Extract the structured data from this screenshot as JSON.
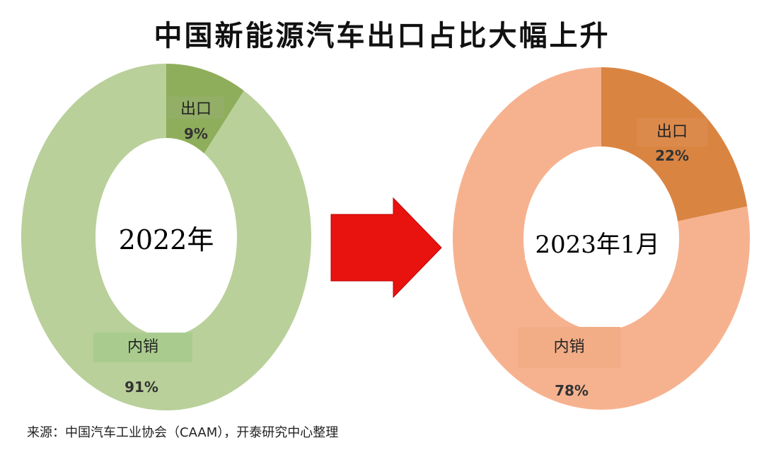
{
  "title": "中国新能源汽车出口占比大幅上升",
  "source": "来源：中国汽车工业协会（CAAM），开泰研究中心整理",
  "chart_data": [
    {
      "type": "pie",
      "donut": true,
      "center_label": "2022年",
      "categories": [
        "出口",
        "内销"
      ],
      "values": [
        9,
        91
      ],
      "labels": [
        "9%",
        "91%"
      ],
      "colors": [
        "#8fae5b",
        "#b9d09a"
      ]
    },
    {
      "type": "pie",
      "donut": true,
      "center_label": "2023年1月",
      "categories": [
        "出口",
        "内销"
      ],
      "values": [
        22,
        78
      ],
      "labels": [
        "22%",
        "78%"
      ],
      "colors": [
        "#da8442",
        "#f6b28f"
      ]
    }
  ],
  "arrow_color": "#e8130f"
}
